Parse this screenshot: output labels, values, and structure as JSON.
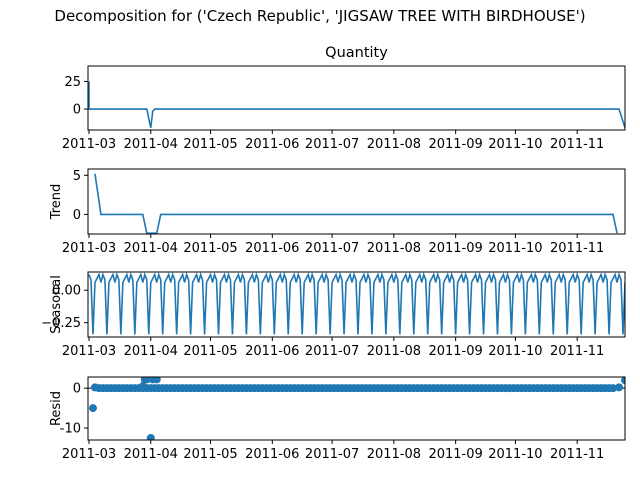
{
  "suptitle": "Decomposition for ('Czech Republic', 'JIGSAW TREE WITH BIRDHOUSE')",
  "line_color": "#1f77b4",
  "chart_data": [
    {
      "type": "line",
      "title": "Quantity",
      "ylabel": "",
      "x_ticks": [
        "2011-03",
        "2011-04",
        "2011-05",
        "2011-06",
        "2011-07",
        "2011-08",
        "2011-09",
        "2011-10",
        "2011-11"
      ],
      "y_ticks": [
        0,
        25
      ],
      "ylim": [
        -19,
        39
      ],
      "x": [
        "2011-03-01",
        "2011-03-01",
        "2011-03-03",
        "2011-03-30",
        "2011-04-01",
        "2011-04-02",
        "2011-04-03",
        "2011-11-22",
        "2011-11-25"
      ],
      "values": [
        25,
        0,
        0,
        0,
        -17,
        -2,
        0,
        0,
        -17
      ]
    },
    {
      "type": "line",
      "title": "",
      "ylabel": "Trend",
      "x_ticks": [
        "2011-03",
        "2011-04",
        "2011-05",
        "2011-06",
        "2011-07",
        "2011-08",
        "2011-09",
        "2011-10",
        "2011-11"
      ],
      "y_ticks": [
        0,
        5
      ],
      "ylim": [
        -2.5,
        5.8
      ],
      "x": [
        "2011-03-04",
        "2011-03-07",
        "2011-03-28",
        "2011-03-30",
        "2011-04-04",
        "2011-04-06",
        "2011-11-19",
        "2011-11-21"
      ],
      "values": [
        5.2,
        0,
        0,
        -2.4,
        -2.4,
        0,
        0,
        -2.4
      ]
    },
    {
      "type": "line",
      "title": "",
      "ylabel": "Seasonal",
      "x_ticks": [
        "2011-03",
        "2011-04",
        "2011-05",
        "2011-06",
        "2011-07",
        "2011-08",
        "2011-09",
        "2011-10",
        "2011-11"
      ],
      "y_ticks": [
        -0.25,
        0.0
      ],
      "y_tick_labels": [
        "−0.25",
        "0.00"
      ],
      "ylim": [
        -0.36,
        0.14
      ],
      "period_days": 7,
      "pattern": [
        0.12,
        0.08,
        -0.34,
        0.06,
        0.09,
        0.12,
        0.06
      ],
      "x_start": "2011-03-01",
      "x_end": "2011-11-25"
    },
    {
      "type": "scatter",
      "title": "",
      "ylabel": "Resid",
      "x_ticks": [
        "2011-03",
        "2011-04",
        "2011-05",
        "2011-06",
        "2011-07",
        "2011-08",
        "2011-09",
        "2011-10",
        "2011-11"
      ],
      "y_ticks": [
        -10,
        0
      ],
      "ylim": [
        -13,
        2.8
      ],
      "x": [
        "2011-03-03",
        "2011-03-04",
        "2011-03-28",
        "2011-03-29",
        "2011-03-30",
        "2011-04-01",
        "2011-04-02",
        "2011-04-04",
        "2011-11-22",
        "2011-11-25"
      ],
      "values": [
        -5,
        0.2,
        0.5,
        2.2,
        2.2,
        -12.5,
        2.2,
        2.2,
        0.2,
        2.0
      ],
      "baseline_start": "2011-03-06",
      "baseline_end": "2011-11-20",
      "baseline_step_days": 2
    }
  ]
}
